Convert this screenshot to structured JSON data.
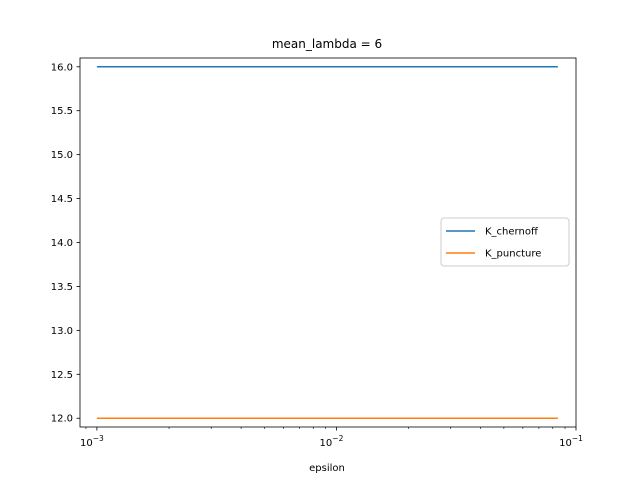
{
  "chart_data": {
    "type": "line",
    "title": "mean_lambda = 6",
    "xlabel": "epsilon",
    "ylabel": "",
    "xscale": "log",
    "xlim": [
      0.00085,
      0.1
    ],
    "ylim": [
      11.9,
      16.1
    ],
    "x_ticks": [
      {
        "value": 0.001,
        "base": "10",
        "exp": "−3"
      },
      {
        "value": 0.01,
        "base": "10",
        "exp": "−2"
      },
      {
        "value": 0.1,
        "base": "10",
        "exp": "−1"
      }
    ],
    "y_ticks": [
      "12.0",
      "12.5",
      "13.0",
      "13.5",
      "14.0",
      "14.5",
      "15.0",
      "15.5",
      "16.0"
    ],
    "series": [
      {
        "name": "K_chernoff",
        "color": "#1f77b4",
        "x": [
          0.001,
          0.084
        ],
        "y": [
          16.0,
          16.0
        ]
      },
      {
        "name": "K_puncture",
        "color": "#ff7f0e",
        "x": [
          0.001,
          0.084
        ],
        "y": [
          12.0,
          12.0
        ]
      }
    ],
    "legend_position": "center-right",
    "grid": false
  }
}
